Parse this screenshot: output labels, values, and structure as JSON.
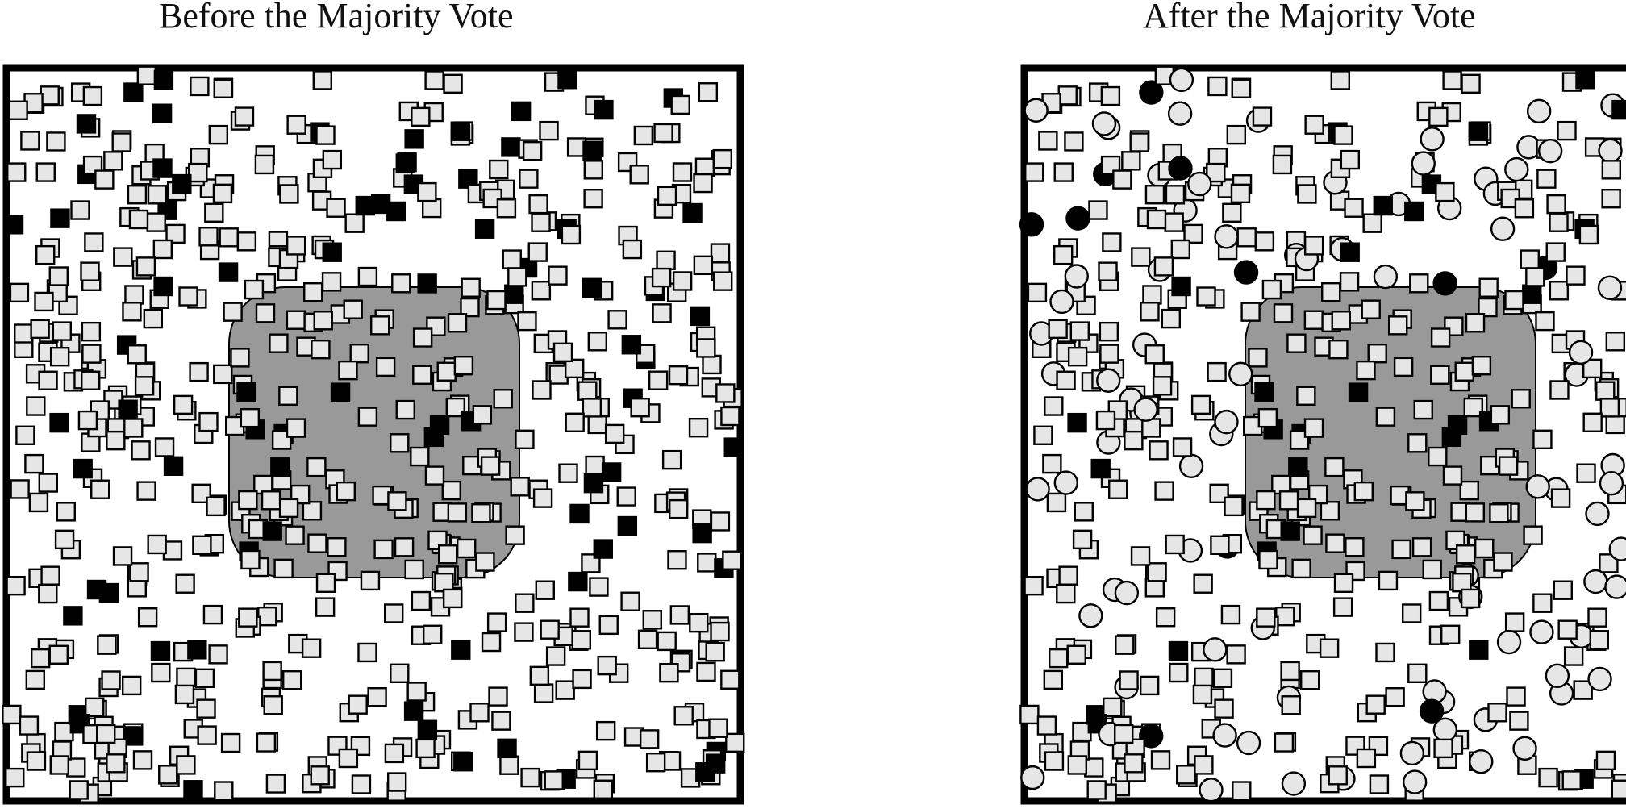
{
  "panels": [
    {
      "title": "Before the Majority Vote"
    },
    {
      "title": "After the Majority Vote"
    }
  ],
  "colors": {
    "open_marker_fill": "#e6e6e6",
    "filled_marker_fill": "#000000",
    "marker_stroke": "#000000",
    "region_fill": "#999999",
    "frame_stroke": "#000000"
  },
  "legend_semantics": {
    "open_square": "light-gray square marker",
    "black_square": "black square marker",
    "open_circle": "light-gray circle marker",
    "black_circle": "black circle marker"
  }
}
